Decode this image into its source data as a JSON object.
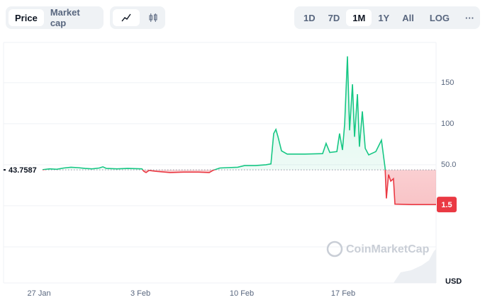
{
  "toolbar": {
    "metric_tabs": [
      "Price",
      "Market cap"
    ],
    "range_tabs": [
      "1D",
      "7D",
      "1M",
      "1Y",
      "All"
    ],
    "active_range": "1M",
    "scale_toggle": "LOG",
    "more": "···"
  },
  "chart_data": {
    "type": "line",
    "x": [
      0.24,
      0.73,
      1.22,
      1.71,
      2.2,
      2.69,
      3.18,
      3.67,
      4.16,
      4.41,
      4.65,
      5.38,
      6.12,
      7.1,
      7.24,
      7.39,
      7.59,
      8.08,
      9.05,
      10.03,
      11.01,
      11.75,
      11.99,
      12.48,
      12.97,
      13.71,
      14.19,
      14.93,
      15.66,
      16.01,
      16.2,
      16.35,
      16.5,
      16.74,
      17.13,
      18.36,
      19.58,
      19.82,
      20.07,
      20.56,
      20.75,
      20.95,
      21.1,
      21.29,
      21.44,
      21.64,
      21.78,
      21.98,
      22.12,
      22.32,
      22.52,
      22.76,
      23.25,
      23.64,
      23.79,
      23.89,
      23.98,
      24.13,
      24.28,
      24.47,
      24.57,
      25.7,
      27.41
    ],
    "series": [
      {
        "name": "Price",
        "color_up": "#16c784",
        "color_down": "#ea3943",
        "values": [
          44,
          45,
          44.5,
          46,
          47,
          46.5,
          45.5,
          45,
          46,
          47.5,
          45.5,
          45,
          45.5,
          45,
          42,
          40.5,
          43,
          42,
          40.5,
          41,
          41,
          40.5,
          43,
          46,
          46.5,
          47,
          49,
          49,
          50,
          51,
          88,
          93,
          84,
          67,
          63,
          63,
          63.5,
          76,
          65,
          66,
          88,
          68,
          100,
          182,
          92,
          148,
          84,
          136,
          72,
          115,
          70,
          62,
          66,
          80,
          60,
          46,
          9,
          38,
          30,
          33,
          2,
          1.5,
          1.5
        ]
      }
    ],
    "baseline": 43.7587,
    "xlim": [
      -2.45,
      27.41
    ],
    "xticks": [
      {
        "value": 0,
        "label": "27 Jan"
      },
      {
        "value": 7,
        "label": "3 Feb"
      },
      {
        "value": 14,
        "label": "10 Feb"
      },
      {
        "value": 21,
        "label": "17 Feb"
      }
    ],
    "ylim": [
      -94,
      199
    ],
    "yticks": [
      {
        "value": 50,
        "label": "50.0"
      },
      100,
      150
    ],
    "unlabeled_grid": [
      0,
      -50
    ],
    "grid": true,
    "currency": "USD",
    "watermark": "CoinMarketCap"
  }
}
